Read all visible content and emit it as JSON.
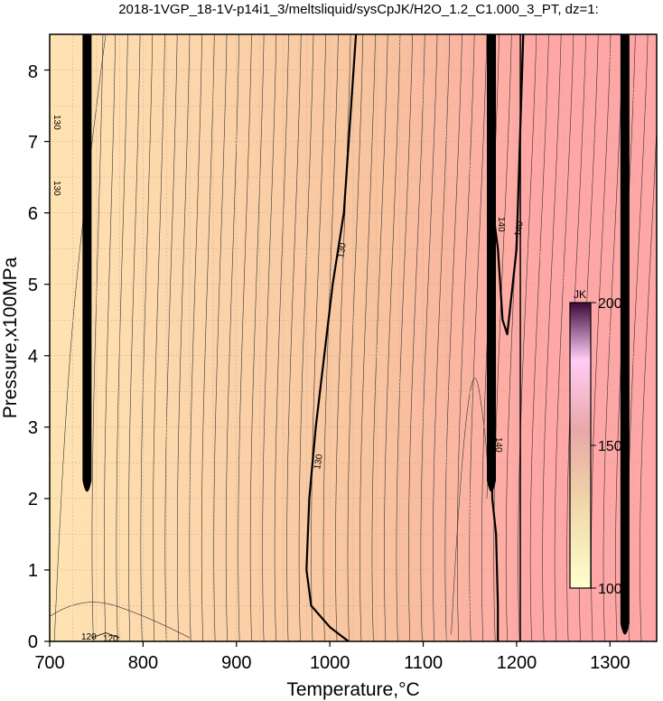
{
  "chart_data": {
    "type": "heatmap",
    "title": "2018-1VGP_18-1V-p14i1_3/meltsliquid/sysCpJK/H2O_1.2_C1.000_3_PT, dz=1:",
    "xlabel": "Temperature,°C",
    "ylabel": "Pressure,x100MPa",
    "xlim": [
      700,
      1350
    ],
    "ylim": [
      0,
      8.5
    ],
    "x_ticks": [
      "700",
      "800",
      "900",
      "1000",
      "1100",
      "1200",
      "1300"
    ],
    "y_ticks": [
      "0",
      "1",
      "2",
      "3",
      "4",
      "5",
      "6",
      "7",
      "8"
    ],
    "grid": true,
    "colorbar": {
      "unit": "JK",
      "range": [
        100,
        200
      ],
      "ticks": [
        "100",
        "150",
        "200"
      ],
      "placement": "right-inside",
      "colors": [
        "#ffffcc",
        "#f0d6a8",
        "#e8a8a8",
        "#ffccf5",
        "#3b0a3a"
      ]
    },
    "field_colors": {
      "low": "#ffe3b3",
      "mid": "#f8c39e",
      "high": "#ffa7a6"
    },
    "contour_labels": [
      "130",
      "130",
      "130",
      "130",
      "140",
      "140",
      "140",
      "120",
      "120"
    ],
    "contours": [
      {
        "level": 130,
        "bold": true,
        "points": [
          [
            1028,
            8.5
          ],
          [
            1015,
            6.0
          ],
          [
            1003,
            5.0
          ],
          [
            985,
            3.0
          ],
          [
            978,
            2.0
          ],
          [
            975,
            1.0
          ],
          [
            980,
            0.5
          ],
          [
            1000,
            0.2
          ],
          [
            1020,
            0
          ]
        ]
      },
      {
        "level": 140,
        "bold": true,
        "points": [
          [
            1172,
            8.5
          ],
          [
            1172,
            6.0
          ],
          [
            1173,
            4.5
          ],
          [
            1173,
            3.5
          ],
          [
            1174,
            2.0
          ],
          [
            1178,
            1.5
          ],
          [
            1180,
            0.5
          ],
          [
            1180,
            0
          ]
        ]
      },
      {
        "level": 140,
        "bold": true,
        "points": [
          [
            1175,
            6.0
          ],
          [
            1180,
            5.5
          ],
          [
            1185,
            4.5
          ],
          [
            1190,
            4.3
          ],
          [
            1200,
            5.5
          ],
          [
            1207,
            8.5
          ]
        ]
      },
      {
        "level": 120,
        "bold": false,
        "points": [
          [
            745,
            0.05
          ],
          [
            760,
            0.12
          ],
          [
            775,
            0.05
          ]
        ]
      }
    ],
    "bands": [
      {
        "x": 740,
        "ymin": 2.0,
        "ymax": 8.5
      },
      {
        "x": 1173,
        "ymin": 2.0,
        "ymax": 8.5
      },
      {
        "x": 1316,
        "ymin": 0,
        "ymax": 8.5
      }
    ]
  }
}
